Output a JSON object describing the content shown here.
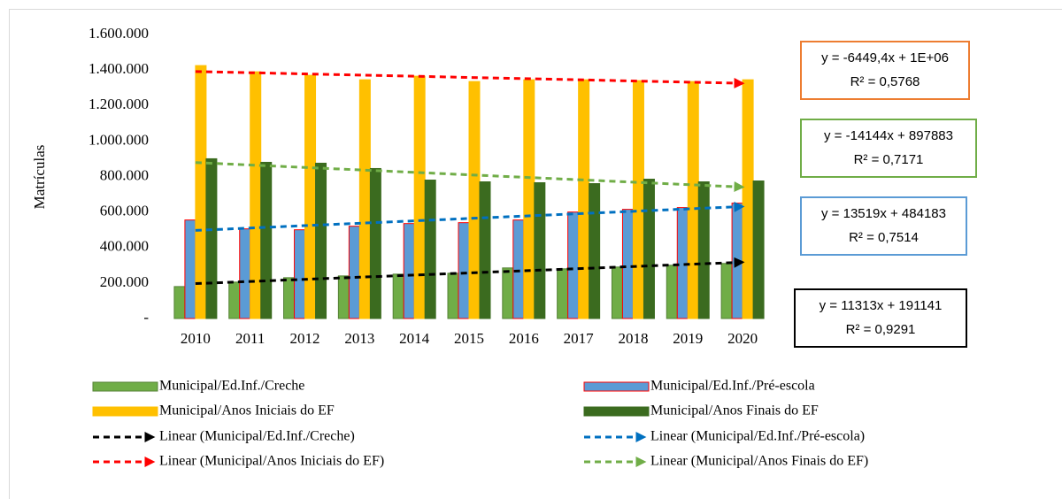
{
  "chart_data": {
    "type": "bar",
    "y_label": "Matrículas",
    "categories": [
      "2010",
      "2011",
      "2012",
      "2013",
      "2014",
      "2015",
      "2016",
      "2017",
      "2018",
      "2019",
      "2020"
    ],
    "ylim": [
      0,
      1600000
    ],
    "yticks": [
      {
        "value": 0,
        "label": "-"
      },
      {
        "value": 200000,
        "label": "200.000"
      },
      {
        "value": 400000,
        "label": "400.000"
      },
      {
        "value": 600000,
        "label": "600.000"
      },
      {
        "value": 800000,
        "label": "800.000"
      },
      {
        "value": 1000000,
        "label": "1.000.000"
      },
      {
        "value": 1200000,
        "label": "1.200.000"
      },
      {
        "value": 1400000,
        "label": "1.400.000"
      },
      {
        "value": 1600000,
        "label": "1.600.000"
      }
    ],
    "grid": false,
    "series": [
      {
        "name": "Municipal/Ed.Inf./Creche",
        "color": "#70ad47",
        "border": "#548235",
        "values": [
          180000,
          205000,
          230000,
          240000,
          250000,
          255000,
          285000,
          280000,
          290000,
          300000,
          310000
        ],
        "trendline": {
          "name": "Linear (Municipal/Ed.Inf./Creche)",
          "color": "#000000",
          "equation": "y = 11313x + 191141",
          "r2": "R² = 0,9291",
          "box_color": "#000000"
        }
      },
      {
        "name": "Municipal/Ed.Inf./Pré-escola",
        "color": "#5b9bd5",
        "border": "#ff0000",
        "values": [
          555000,
          505000,
          500000,
          520000,
          535000,
          540000,
          555000,
          600000,
          615000,
          625000,
          650000
        ],
        "trendline": {
          "name": "Linear (Municipal/Ed.Inf./Pré-escola)",
          "color": "#0070c0",
          "equation": "y = 13519x + 484183",
          "r2": "R² = 0,7514",
          "box_color": "#5b9bd5"
        }
      },
      {
        "name": "Municipal/Anos Iniciais do EF",
        "color": "#ffc000",
        "border": "#ffc000",
        "values": [
          1425000,
          1390000,
          1370000,
          1345000,
          1365000,
          1335000,
          1345000,
          1345000,
          1340000,
          1335000,
          1345000
        ],
        "trendline": {
          "name": "Linear (Municipal/Anos Iniciais do EF)",
          "color": "#ff0000",
          "equation": "y = -6449,4x + 1E+06",
          "r2": "R² = 0,5768",
          "box_color": "#ed7d31"
        }
      },
      {
        "name": "Municipal/Anos Finais do EF",
        "color": "#3b6b1f",
        "border": "#3b6b1f",
        "values": [
          900000,
          880000,
          875000,
          845000,
          780000,
          770000,
          765000,
          760000,
          785000,
          770000,
          775000
        ],
        "trendline": {
          "name": "Linear (Municipal/Anos Finais do EF)",
          "color": "#70ad47",
          "equation": "y = -14144x + 897883",
          "r2": "R² = 0,7171",
          "box_color": "#70ad47"
        }
      }
    ]
  }
}
